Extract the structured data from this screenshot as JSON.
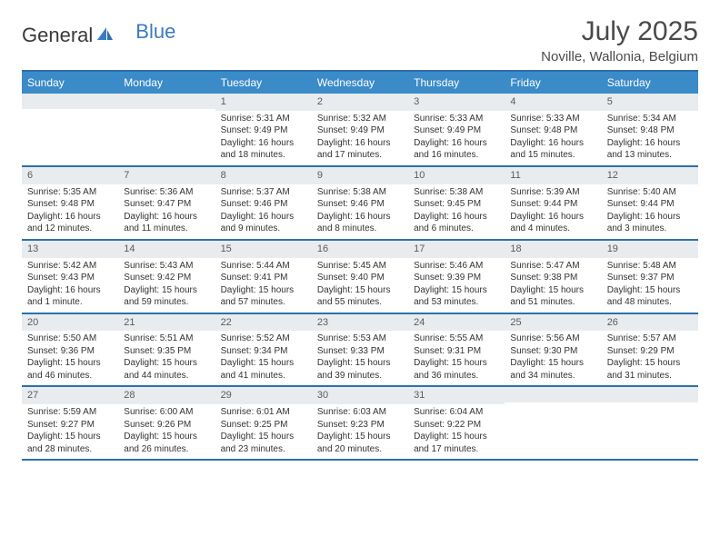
{
  "logo": {
    "part1": "General",
    "part2": "Blue"
  },
  "title": "July 2025",
  "location": "Noville, Wallonia, Belgium",
  "colors": {
    "header_bg": "#3b8bc9",
    "header_text": "#ffffff",
    "rule": "#2e6fab",
    "daynum_bg": "#e9ecef",
    "logo_blue": "#3b7bbf"
  },
  "day_names": [
    "Sunday",
    "Monday",
    "Tuesday",
    "Wednesday",
    "Thursday",
    "Friday",
    "Saturday"
  ],
  "weeks": [
    [
      {
        "n": "",
        "sunrise": "",
        "sunset": "",
        "daylight": ""
      },
      {
        "n": "",
        "sunrise": "",
        "sunset": "",
        "daylight": ""
      },
      {
        "n": "1",
        "sunrise": "Sunrise: 5:31 AM",
        "sunset": "Sunset: 9:49 PM",
        "daylight": "Daylight: 16 hours and 18 minutes."
      },
      {
        "n": "2",
        "sunrise": "Sunrise: 5:32 AM",
        "sunset": "Sunset: 9:49 PM",
        "daylight": "Daylight: 16 hours and 17 minutes."
      },
      {
        "n": "3",
        "sunrise": "Sunrise: 5:33 AM",
        "sunset": "Sunset: 9:49 PM",
        "daylight": "Daylight: 16 hours and 16 minutes."
      },
      {
        "n": "4",
        "sunrise": "Sunrise: 5:33 AM",
        "sunset": "Sunset: 9:48 PM",
        "daylight": "Daylight: 16 hours and 15 minutes."
      },
      {
        "n": "5",
        "sunrise": "Sunrise: 5:34 AM",
        "sunset": "Sunset: 9:48 PM",
        "daylight": "Daylight: 16 hours and 13 minutes."
      }
    ],
    [
      {
        "n": "6",
        "sunrise": "Sunrise: 5:35 AM",
        "sunset": "Sunset: 9:48 PM",
        "daylight": "Daylight: 16 hours and 12 minutes."
      },
      {
        "n": "7",
        "sunrise": "Sunrise: 5:36 AM",
        "sunset": "Sunset: 9:47 PM",
        "daylight": "Daylight: 16 hours and 11 minutes."
      },
      {
        "n": "8",
        "sunrise": "Sunrise: 5:37 AM",
        "sunset": "Sunset: 9:46 PM",
        "daylight": "Daylight: 16 hours and 9 minutes."
      },
      {
        "n": "9",
        "sunrise": "Sunrise: 5:38 AM",
        "sunset": "Sunset: 9:46 PM",
        "daylight": "Daylight: 16 hours and 8 minutes."
      },
      {
        "n": "10",
        "sunrise": "Sunrise: 5:38 AM",
        "sunset": "Sunset: 9:45 PM",
        "daylight": "Daylight: 16 hours and 6 minutes."
      },
      {
        "n": "11",
        "sunrise": "Sunrise: 5:39 AM",
        "sunset": "Sunset: 9:44 PM",
        "daylight": "Daylight: 16 hours and 4 minutes."
      },
      {
        "n": "12",
        "sunrise": "Sunrise: 5:40 AM",
        "sunset": "Sunset: 9:44 PM",
        "daylight": "Daylight: 16 hours and 3 minutes."
      }
    ],
    [
      {
        "n": "13",
        "sunrise": "Sunrise: 5:42 AM",
        "sunset": "Sunset: 9:43 PM",
        "daylight": "Daylight: 16 hours and 1 minute."
      },
      {
        "n": "14",
        "sunrise": "Sunrise: 5:43 AM",
        "sunset": "Sunset: 9:42 PM",
        "daylight": "Daylight: 15 hours and 59 minutes."
      },
      {
        "n": "15",
        "sunrise": "Sunrise: 5:44 AM",
        "sunset": "Sunset: 9:41 PM",
        "daylight": "Daylight: 15 hours and 57 minutes."
      },
      {
        "n": "16",
        "sunrise": "Sunrise: 5:45 AM",
        "sunset": "Sunset: 9:40 PM",
        "daylight": "Daylight: 15 hours and 55 minutes."
      },
      {
        "n": "17",
        "sunrise": "Sunrise: 5:46 AM",
        "sunset": "Sunset: 9:39 PM",
        "daylight": "Daylight: 15 hours and 53 minutes."
      },
      {
        "n": "18",
        "sunrise": "Sunrise: 5:47 AM",
        "sunset": "Sunset: 9:38 PM",
        "daylight": "Daylight: 15 hours and 51 minutes."
      },
      {
        "n": "19",
        "sunrise": "Sunrise: 5:48 AM",
        "sunset": "Sunset: 9:37 PM",
        "daylight": "Daylight: 15 hours and 48 minutes."
      }
    ],
    [
      {
        "n": "20",
        "sunrise": "Sunrise: 5:50 AM",
        "sunset": "Sunset: 9:36 PM",
        "daylight": "Daylight: 15 hours and 46 minutes."
      },
      {
        "n": "21",
        "sunrise": "Sunrise: 5:51 AM",
        "sunset": "Sunset: 9:35 PM",
        "daylight": "Daylight: 15 hours and 44 minutes."
      },
      {
        "n": "22",
        "sunrise": "Sunrise: 5:52 AM",
        "sunset": "Sunset: 9:34 PM",
        "daylight": "Daylight: 15 hours and 41 minutes."
      },
      {
        "n": "23",
        "sunrise": "Sunrise: 5:53 AM",
        "sunset": "Sunset: 9:33 PM",
        "daylight": "Daylight: 15 hours and 39 minutes."
      },
      {
        "n": "24",
        "sunrise": "Sunrise: 5:55 AM",
        "sunset": "Sunset: 9:31 PM",
        "daylight": "Daylight: 15 hours and 36 minutes."
      },
      {
        "n": "25",
        "sunrise": "Sunrise: 5:56 AM",
        "sunset": "Sunset: 9:30 PM",
        "daylight": "Daylight: 15 hours and 34 minutes."
      },
      {
        "n": "26",
        "sunrise": "Sunrise: 5:57 AM",
        "sunset": "Sunset: 9:29 PM",
        "daylight": "Daylight: 15 hours and 31 minutes."
      }
    ],
    [
      {
        "n": "27",
        "sunrise": "Sunrise: 5:59 AM",
        "sunset": "Sunset: 9:27 PM",
        "daylight": "Daylight: 15 hours and 28 minutes."
      },
      {
        "n": "28",
        "sunrise": "Sunrise: 6:00 AM",
        "sunset": "Sunset: 9:26 PM",
        "daylight": "Daylight: 15 hours and 26 minutes."
      },
      {
        "n": "29",
        "sunrise": "Sunrise: 6:01 AM",
        "sunset": "Sunset: 9:25 PM",
        "daylight": "Daylight: 15 hours and 23 minutes."
      },
      {
        "n": "30",
        "sunrise": "Sunrise: 6:03 AM",
        "sunset": "Sunset: 9:23 PM",
        "daylight": "Daylight: 15 hours and 20 minutes."
      },
      {
        "n": "31",
        "sunrise": "Sunrise: 6:04 AM",
        "sunset": "Sunset: 9:22 PM",
        "daylight": "Daylight: 15 hours and 17 minutes."
      },
      {
        "n": "",
        "sunrise": "",
        "sunset": "",
        "daylight": ""
      },
      {
        "n": "",
        "sunrise": "",
        "sunset": "",
        "daylight": ""
      }
    ]
  ]
}
